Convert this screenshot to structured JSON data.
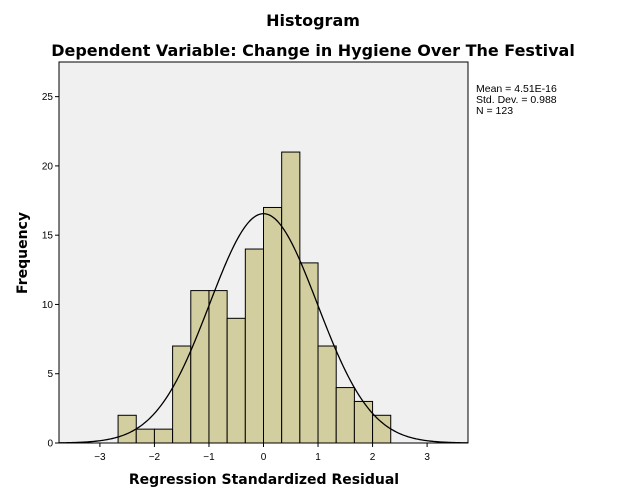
{
  "chart_data": {
    "type": "bar",
    "title": "Histogram",
    "subtitle": "Dependent Variable: Change in Hygiene Over The Festival",
    "xlabel": "Regression Standardized Residual",
    "ylabel": "Frequency",
    "xlim": [
      -3.75,
      3.75
    ],
    "ylim": [
      0,
      27.5
    ],
    "x_ticks": [
      -3,
      -2,
      -1,
      0,
      1,
      2,
      3
    ],
    "y_ticks": [
      0,
      5,
      10,
      15,
      20,
      25
    ],
    "bin_width": 0.3333,
    "bins": [
      {
        "from": -2.6667,
        "to": -2.3333,
        "count": 2
      },
      {
        "from": -2.3333,
        "to": -2.0,
        "count": 1
      },
      {
        "from": -2.0,
        "to": -1.6667,
        "count": 1
      },
      {
        "from": -1.6667,
        "to": -1.3333,
        "count": 7
      },
      {
        "from": -1.3333,
        "to": -1.0,
        "count": 11
      },
      {
        "from": -1.0,
        "to": -0.6667,
        "count": 11
      },
      {
        "from": -0.6667,
        "to": -0.3333,
        "count": 9
      },
      {
        "from": -0.3333,
        "to": 0.0,
        "count": 14
      },
      {
        "from": 0.0,
        "to": 0.3333,
        "count": 17
      },
      {
        "from": 0.3333,
        "to": 0.6667,
        "count": 21
      },
      {
        "from": 0.6667,
        "to": 1.0,
        "count": 13
      },
      {
        "from": 1.0,
        "to": 1.3333,
        "count": 7
      },
      {
        "from": 1.3333,
        "to": 1.6667,
        "count": 4
      },
      {
        "from": 1.6667,
        "to": 2.0,
        "count": 3
      },
      {
        "from": 2.0,
        "to": 2.3333,
        "count": 2
      }
    ],
    "normal_curve": {
      "mean": 0,
      "sd": 0.988,
      "n": 123
    },
    "stats": {
      "mean": "Mean = 4.51E-16",
      "sd": "Std. Dev. = 0.988",
      "n": "N = 123"
    },
    "grid": false,
    "colors": {
      "bar_fill": "#d3ce9f",
      "bar_stroke": "#000000",
      "plot_background": "#f0f0f0",
      "curve": "#000000"
    }
  }
}
